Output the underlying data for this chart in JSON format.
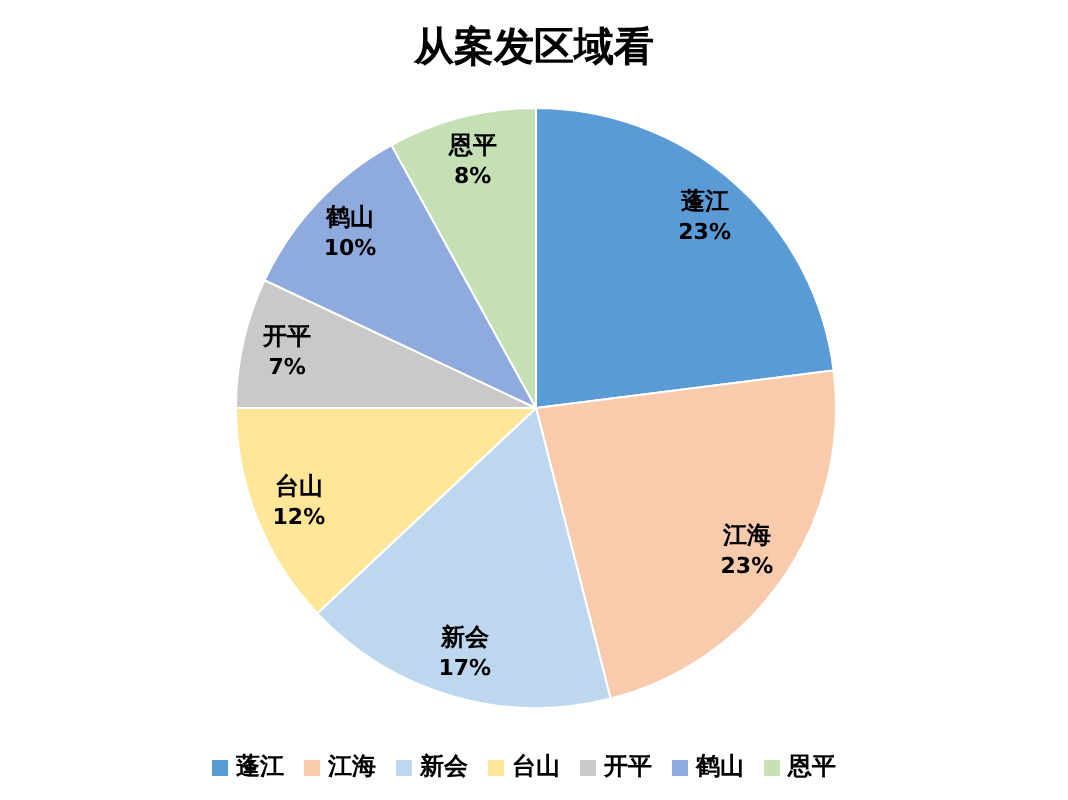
{
  "chart_data": {
    "type": "pie",
    "title": "从案发区域看",
    "categories": [
      "蓬江",
      "江海",
      "新会",
      "台山",
      "开平",
      "鹤山",
      "恩平"
    ],
    "values": [
      23,
      23,
      17,
      12,
      7,
      10,
      8
    ],
    "value_labels": [
      "23%",
      "23%",
      "17%",
      "12%",
      "7%",
      "10%",
      "8%"
    ],
    "colors": [
      "#5b9bd5",
      "#f8cbad",
      "#bdd7ee",
      "#ffe699",
      "#c9c9c9",
      "#8faadc",
      "#c5e0b4"
    ],
    "legend": "bottom"
  }
}
